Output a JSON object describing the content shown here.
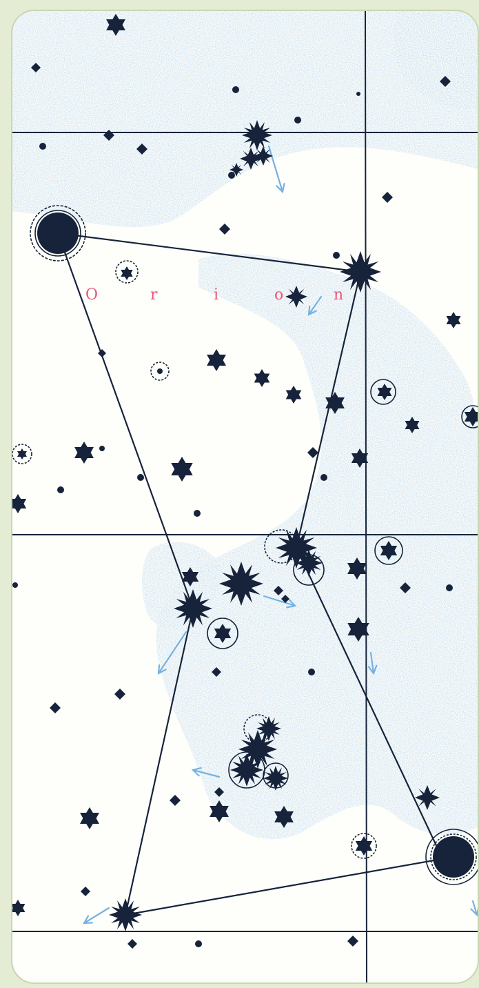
{
  "map": {
    "constellation_label": [
      "O",
      "r",
      "i",
      "o",
      "n"
    ],
    "colors": {
      "background": "#fefefa",
      "nebula": "#a9cdec",
      "ink": "#16233a",
      "label": "#e8567a",
      "arrow": "#74b2e2"
    }
  }
}
